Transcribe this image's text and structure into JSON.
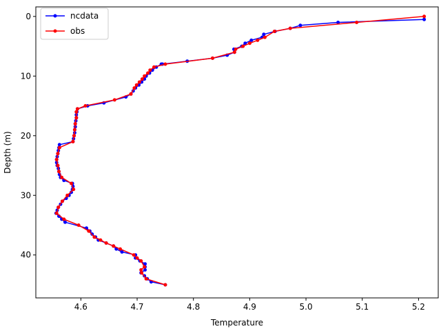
{
  "chart_data": {
    "type": "line",
    "xlabel": "Temperature",
    "ylabel": "Depth (m)",
    "xlim": [
      4.52,
      5.235
    ],
    "ylim": [
      47.2,
      -1.6
    ],
    "y_inverted": true,
    "xticks": [
      4.6,
      4.7,
      4.8,
      4.9,
      5.0,
      5.1,
      5.2
    ],
    "xtick_labels": [
      "4.6",
      "4.7",
      "4.8",
      "4.9",
      "5.0",
      "5.1",
      "5.2"
    ],
    "yticks": [
      0,
      10,
      20,
      30,
      40
    ],
    "ytick_labels": [
      "0",
      "10",
      "20",
      "30",
      "40"
    ],
    "grid": false,
    "legend": {
      "position": "top-left",
      "entries": [
        "ncdata",
        "obs"
      ]
    },
    "series": [
      {
        "name": "ncdata",
        "color": "#0000ff",
        "points": [
          [
            5.21,
            0.5
          ],
          [
            5.057,
            1.0
          ],
          [
            4.99,
            1.5
          ],
          [
            4.972,
            2.0
          ],
          [
            4.945,
            2.5
          ],
          [
            4.925,
            3.0
          ],
          [
            4.922,
            3.5
          ],
          [
            4.903,
            4.0
          ],
          [
            4.892,
            4.5
          ],
          [
            4.886,
            5.0
          ],
          [
            4.872,
            5.5
          ],
          [
            4.873,
            6.0
          ],
          [
            4.86,
            6.5
          ],
          [
            4.834,
            7.0
          ],
          [
            4.789,
            7.5
          ],
          [
            4.745,
            8.0
          ],
          [
            4.743,
            8.0
          ],
          [
            4.734,
            8.5
          ],
          [
            4.727,
            9.0
          ],
          [
            4.722,
            9.5
          ],
          [
            4.716,
            10.0
          ],
          [
            4.713,
            10.5
          ],
          [
            4.708,
            11.0
          ],
          [
            4.703,
            11.5
          ],
          [
            4.697,
            12.0
          ],
          [
            4.693,
            12.5
          ],
          [
            4.689,
            13.0
          ],
          [
            4.68,
            13.5
          ],
          [
            4.641,
            14.5
          ],
          [
            4.612,
            15.0
          ],
          [
            4.594,
            15.5
          ],
          [
            4.593,
            16.0
          ],
          [
            4.592,
            16.5
          ],
          [
            4.592,
            17.0
          ],
          [
            4.591,
            17.5
          ],
          [
            4.59,
            18.0
          ],
          [
            4.59,
            18.5
          ],
          [
            4.589,
            19.0
          ],
          [
            4.589,
            19.5
          ],
          [
            4.588,
            20.0
          ],
          [
            4.587,
            20.5
          ],
          [
            4.586,
            21.0
          ],
          [
            4.562,
            21.5
          ],
          [
            4.561,
            22.0
          ],
          [
            4.56,
            22.5
          ],
          [
            4.559,
            23.0
          ],
          [
            4.558,
            23.5
          ],
          [
            4.557,
            24.0
          ],
          [
            4.557,
            24.5
          ],
          [
            4.558,
            25.0
          ],
          [
            4.56,
            25.5
          ],
          [
            4.561,
            26.0
          ],
          [
            4.562,
            26.5
          ],
          [
            4.564,
            27.0
          ],
          [
            4.57,
            27.5
          ],
          [
            4.585,
            28.0
          ],
          [
            4.586,
            28.5
          ],
          [
            4.585,
            29.0
          ],
          [
            4.583,
            29.5
          ],
          [
            4.579,
            30.0
          ],
          [
            4.574,
            30.5
          ],
          [
            4.567,
            31.0
          ],
          [
            4.564,
            31.5
          ],
          [
            4.56,
            32.0
          ],
          [
            4.558,
            32.5
          ],
          [
            4.556,
            33.0
          ],
          [
            4.561,
            33.5
          ],
          [
            4.566,
            34.0
          ],
          [
            4.572,
            34.5
          ],
          [
            4.61,
            35.5
          ],
          [
            4.616,
            36.0
          ],
          [
            4.62,
            36.5
          ],
          [
            4.626,
            37.0
          ],
          [
            4.631,
            37.5
          ],
          [
            4.645,
            38.0
          ],
          [
            4.658,
            38.5
          ],
          [
            4.663,
            39.0
          ],
          [
            4.673,
            39.5
          ],
          [
            4.697,
            40.0
          ],
          [
            4.697,
            40.5
          ],
          [
            4.705,
            41.0
          ],
          [
            4.714,
            41.5
          ],
          [
            4.714,
            42.0
          ],
          [
            4.714,
            42.5
          ],
          [
            4.707,
            43.0
          ],
          [
            4.713,
            43.5
          ],
          [
            4.718,
            44.0
          ],
          [
            4.725,
            44.5
          ],
          [
            4.75,
            45.0
          ]
        ]
      },
      {
        "name": "obs",
        "color": "#ff0000",
        "points": [
          [
            5.21,
            0.0
          ],
          [
            5.09,
            1.0
          ],
          [
            4.972,
            2.0
          ],
          [
            4.944,
            2.5
          ],
          [
            4.927,
            3.5
          ],
          [
            4.914,
            4.0
          ],
          [
            4.9,
            4.5
          ],
          [
            4.888,
            5.0
          ],
          [
            4.875,
            5.5
          ],
          [
            4.873,
            6.0
          ],
          [
            4.834,
            7.0
          ],
          [
            4.75,
            8.0
          ],
          [
            4.73,
            8.5
          ],
          [
            4.723,
            9.0
          ],
          [
            4.719,
            9.5
          ],
          [
            4.713,
            10.0
          ],
          [
            4.709,
            10.5
          ],
          [
            4.704,
            11.0
          ],
          [
            4.699,
            11.5
          ],
          [
            4.695,
            12.0
          ],
          [
            4.689,
            13.0
          ],
          [
            4.66,
            14.0
          ],
          [
            4.608,
            15.0
          ],
          [
            4.594,
            15.5
          ],
          [
            4.592,
            16.0
          ],
          [
            4.592,
            17.0
          ],
          [
            4.59,
            18.0
          ],
          [
            4.589,
            19.0
          ],
          [
            4.588,
            20.0
          ],
          [
            4.586,
            21.0
          ],
          [
            4.562,
            22.0
          ],
          [
            4.559,
            23.0
          ],
          [
            4.557,
            24.0
          ],
          [
            4.559,
            25.0
          ],
          [
            4.561,
            26.0
          ],
          [
            4.566,
            27.0
          ],
          [
            4.583,
            28.0
          ],
          [
            4.587,
            29.0
          ],
          [
            4.576,
            30.0
          ],
          [
            4.567,
            31.0
          ],
          [
            4.56,
            32.0
          ],
          [
            4.557,
            33.0
          ],
          [
            4.57,
            34.0
          ],
          [
            4.596,
            35.0
          ],
          [
            4.614,
            36.0
          ],
          [
            4.624,
            37.0
          ],
          [
            4.635,
            37.5
          ],
          [
            4.645,
            38.0
          ],
          [
            4.658,
            38.5
          ],
          [
            4.67,
            39.0
          ],
          [
            4.694,
            40.0
          ],
          [
            4.7,
            40.5
          ],
          [
            4.707,
            41.0
          ],
          [
            4.713,
            42.0
          ],
          [
            4.707,
            42.5
          ],
          [
            4.708,
            43.0
          ],
          [
            4.716,
            44.0
          ],
          [
            4.75,
            45.0
          ]
        ]
      }
    ]
  }
}
